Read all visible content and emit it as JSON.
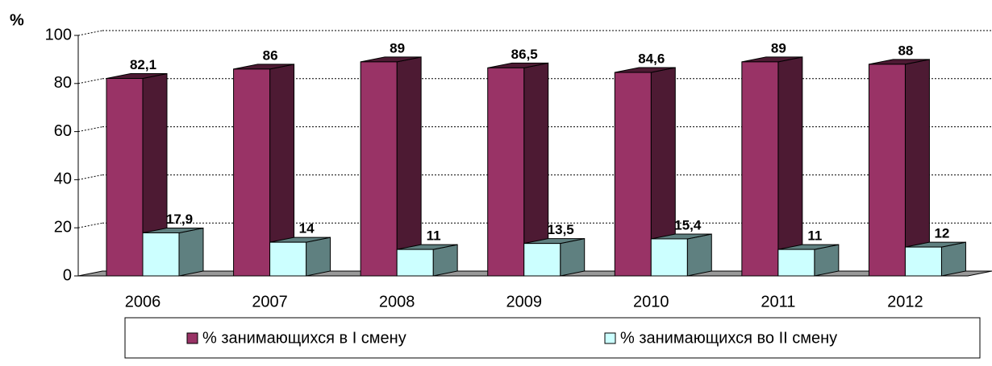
{
  "chart_data": {
    "type": "bar3d",
    "y_label": "%",
    "categories": [
      "2006",
      "2007",
      "2008",
      "2009",
      "2010",
      "2011",
      "2012"
    ],
    "series": [
      {
        "name": "% занимающихся в I смену",
        "color": "#993366",
        "side_color": "#4d1a33",
        "values": [
          82.1,
          86,
          89,
          86.5,
          84.6,
          89,
          88
        ],
        "value_labels": [
          "82,1",
          "86",
          "89",
          "86,5",
          "84,6",
          "89",
          "88"
        ]
      },
      {
        "name": "% занимающихся во II смену",
        "color": "#ccffff",
        "side_color": "#5f8080",
        "values": [
          17.9,
          14,
          11,
          13.5,
          15.4,
          11,
          12
        ],
        "value_labels": [
          "17,9",
          "14",
          "11",
          "13,5",
          "15,4",
          "11",
          "12"
        ]
      }
    ],
    "ylim": [
      0,
      100
    ],
    "yticks": [
      0,
      20,
      40,
      60,
      80,
      100
    ],
    "grid": true,
    "legend": "bottom"
  }
}
